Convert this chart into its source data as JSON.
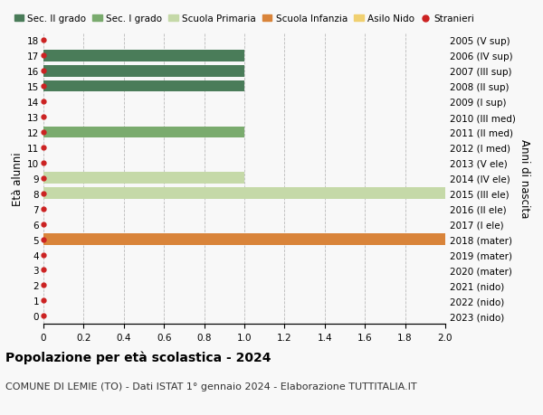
{
  "title": "Popolazione per età scolastica - 2024",
  "subtitle": "COMUNE DI LEMIE (TO) - Dati ISTAT 1° gennaio 2024 - Elaborazione TUTTITALIA.IT",
  "ylabel_left": "Età alunni",
  "ylabel_right": "Anni di nascita",
  "xlim": [
    0,
    2.0
  ],
  "xticks": [
    0,
    0.2,
    0.4,
    0.6,
    0.8,
    1.0,
    1.2,
    1.4,
    1.6,
    1.8,
    2.0
  ],
  "xtick_labels": [
    "0",
    "0.2",
    "0.4",
    "0.6",
    "0.8",
    "1.0",
    "1.2",
    "1.4",
    "1.6",
    "1.8",
    "2.0"
  ],
  "ages": [
    18,
    17,
    16,
    15,
    14,
    13,
    12,
    11,
    10,
    9,
    8,
    7,
    6,
    5,
    4,
    3,
    2,
    1,
    0
  ],
  "right_labels": [
    "2005 (V sup)",
    "2006 (IV sup)",
    "2007 (III sup)",
    "2008 (II sup)",
    "2009 (I sup)",
    "2010 (III med)",
    "2011 (II med)",
    "2012 (I med)",
    "2013 (V ele)",
    "2014 (IV ele)",
    "2015 (III ele)",
    "2016 (II ele)",
    "2017 (I ele)",
    "2018 (mater)",
    "2019 (mater)",
    "2020 (mater)",
    "2021 (nido)",
    "2022 (nido)",
    "2023 (nido)"
  ],
  "bars": [
    {
      "age": 17,
      "value": 1.0,
      "color": "#4a7c59"
    },
    {
      "age": 16,
      "value": 1.0,
      "color": "#4a7c59"
    },
    {
      "age": 15,
      "value": 1.0,
      "color": "#4a7c59"
    },
    {
      "age": 12,
      "value": 1.0,
      "color": "#7aab6e"
    },
    {
      "age": 9,
      "value": 1.0,
      "color": "#c5d9a8"
    },
    {
      "age": 8,
      "value": 2.0,
      "color": "#c5d9a8"
    },
    {
      "age": 5,
      "value": 2.0,
      "color": "#d9843a"
    }
  ],
  "stranieri_ages": [
    18,
    17,
    16,
    15,
    14,
    13,
    12,
    11,
    10,
    9,
    8,
    7,
    6,
    5,
    4,
    3,
    2,
    1,
    0
  ],
  "color_sec2": "#4a7c59",
  "color_sec1": "#7aab6e",
  "color_primaria": "#c5d9a8",
  "color_infanzia": "#d9843a",
  "color_nido": "#f0d070",
  "color_stranieri": "#cc2222",
  "background": "#f8f8f8",
  "grid_color": "#bbbbbb",
  "title_fontsize": 10,
  "subtitle_fontsize": 8,
  "legend_fontsize": 7.5,
  "tick_fontsize": 7.5,
  "bar_height": 0.75
}
